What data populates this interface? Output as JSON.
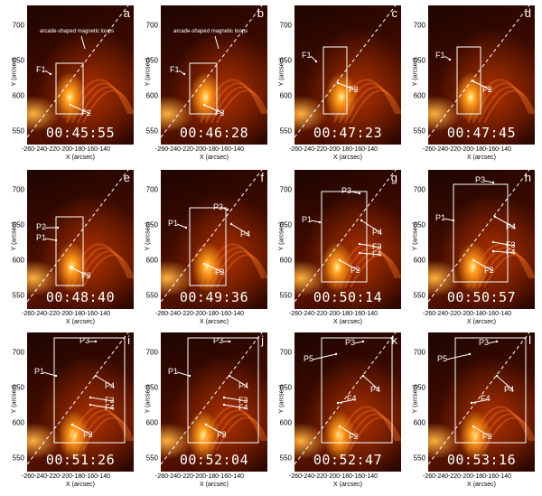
{
  "axes": {
    "x_title": "X (arcsec)",
    "y_title": "Y (arcsec)",
    "x_ticks": [
      "-260",
      "-240",
      "-220",
      "-200",
      "-180",
      "-160",
      "-140"
    ],
    "y_ticks": [
      "700",
      "650",
      "600",
      "550"
    ]
  },
  "panels": [
    {
      "label": "a",
      "time": "00:45:55",
      "caption": "arcade-shaped magnetic loops",
      "tags": [
        "F1",
        "F2"
      ]
    },
    {
      "label": "b",
      "time": "00:46:28",
      "caption": "arcade-shaped magnetic loops",
      "tags": [
        "F1",
        "F2"
      ]
    },
    {
      "label": "c",
      "time": "00:47:23",
      "caption": "",
      "tags": [
        "F1",
        "F2"
      ]
    },
    {
      "label": "d",
      "time": "00:47:45",
      "caption": "",
      "tags": [
        "F1",
        "F2"
      ]
    },
    {
      "label": "e",
      "time": "00:48:40",
      "caption": "",
      "tags": [
        "P2",
        "P1",
        "F2"
      ]
    },
    {
      "label": "f",
      "time": "00:49:36",
      "caption": "",
      "tags": [
        "P3",
        "P1",
        "P4",
        "F2"
      ]
    },
    {
      "label": "g",
      "time": "00:50:14",
      "caption": "",
      "tags": [
        "P3",
        "P1",
        "P4",
        "F3",
        "F4",
        "F2"
      ]
    },
    {
      "label": "h",
      "time": "00:50:57",
      "caption": "",
      "tags": [
        "P3",
        "P1",
        "P4",
        "F3",
        "F4",
        "F2"
      ]
    },
    {
      "label": "i",
      "time": "00:51:26",
      "caption": "",
      "tags": [
        "P3",
        "P1",
        "P4",
        "F3",
        "F4",
        "F2"
      ]
    },
    {
      "label": "j",
      "time": "00:52:04",
      "caption": "",
      "tags": [
        "P3",
        "P1",
        "P4",
        "F3",
        "F4",
        "F2"
      ]
    },
    {
      "label": "k",
      "time": "00:52:47",
      "caption": "",
      "tags": [
        "P5",
        "P3",
        "P4",
        "F4",
        "F2"
      ]
    },
    {
      "label": "l",
      "time": "00:53:16",
      "caption": "",
      "tags": [
        "P5",
        "P3",
        "P4",
        "F4",
        "F2"
      ]
    }
  ]
}
